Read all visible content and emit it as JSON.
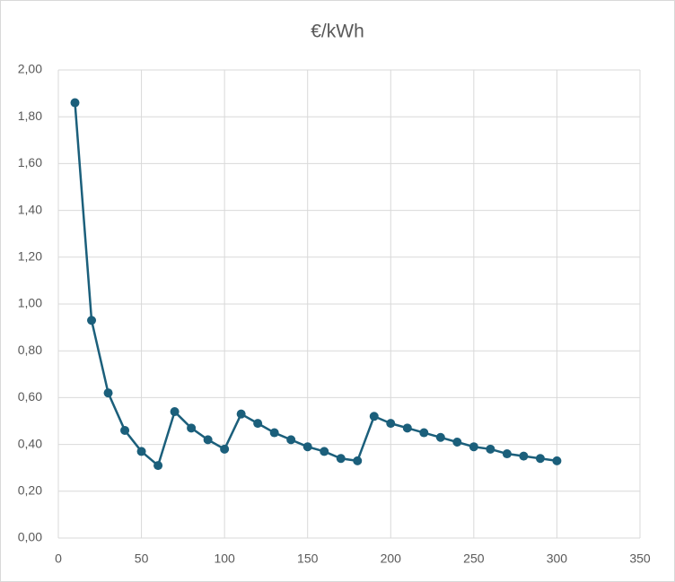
{
  "chart_data": {
    "type": "scatter-line",
    "title": "€/kWh",
    "x": [
      10,
      20,
      30,
      40,
      50,
      60,
      70,
      80,
      90,
      100,
      110,
      120,
      130,
      140,
      150,
      160,
      170,
      180,
      190,
      200,
      210,
      220,
      230,
      240,
      250,
      260,
      270,
      280,
      290,
      300
    ],
    "values": [
      1.86,
      0.93,
      0.62,
      0.46,
      0.37,
      0.31,
      0.54,
      0.47,
      0.42,
      0.38,
      0.53,
      0.49,
      0.45,
      0.42,
      0.39,
      0.37,
      0.34,
      0.33,
      0.52,
      0.49,
      0.47,
      0.45,
      0.43,
      0.41,
      0.39,
      0.38,
      0.36,
      0.35,
      0.34,
      0.33
    ],
    "color": "#1b5f7b",
    "xlim": [
      0,
      350
    ],
    "xticks": [
      0,
      50,
      100,
      150,
      200,
      250,
      300,
      350
    ],
    "ylim": [
      0,
      2
    ],
    "yticks": [
      {
        "value": 0,
        "label": "0,00"
      },
      {
        "value": 0.2,
        "label": "0,20"
      },
      {
        "value": 0.4,
        "label": "0,40"
      },
      {
        "value": 0.6,
        "label": "0,60"
      },
      {
        "value": 0.8,
        "label": "0,80"
      },
      {
        "value": 1,
        "label": "1,00"
      },
      {
        "value": 1.2,
        "label": "1,20"
      },
      {
        "value": 1.4,
        "label": "1,40"
      },
      {
        "value": 1.6,
        "label": "1,60"
      },
      {
        "value": 1.8,
        "label": "1,80"
      },
      {
        "value": 2,
        "label": "2,00"
      }
    ],
    "grid": true
  }
}
